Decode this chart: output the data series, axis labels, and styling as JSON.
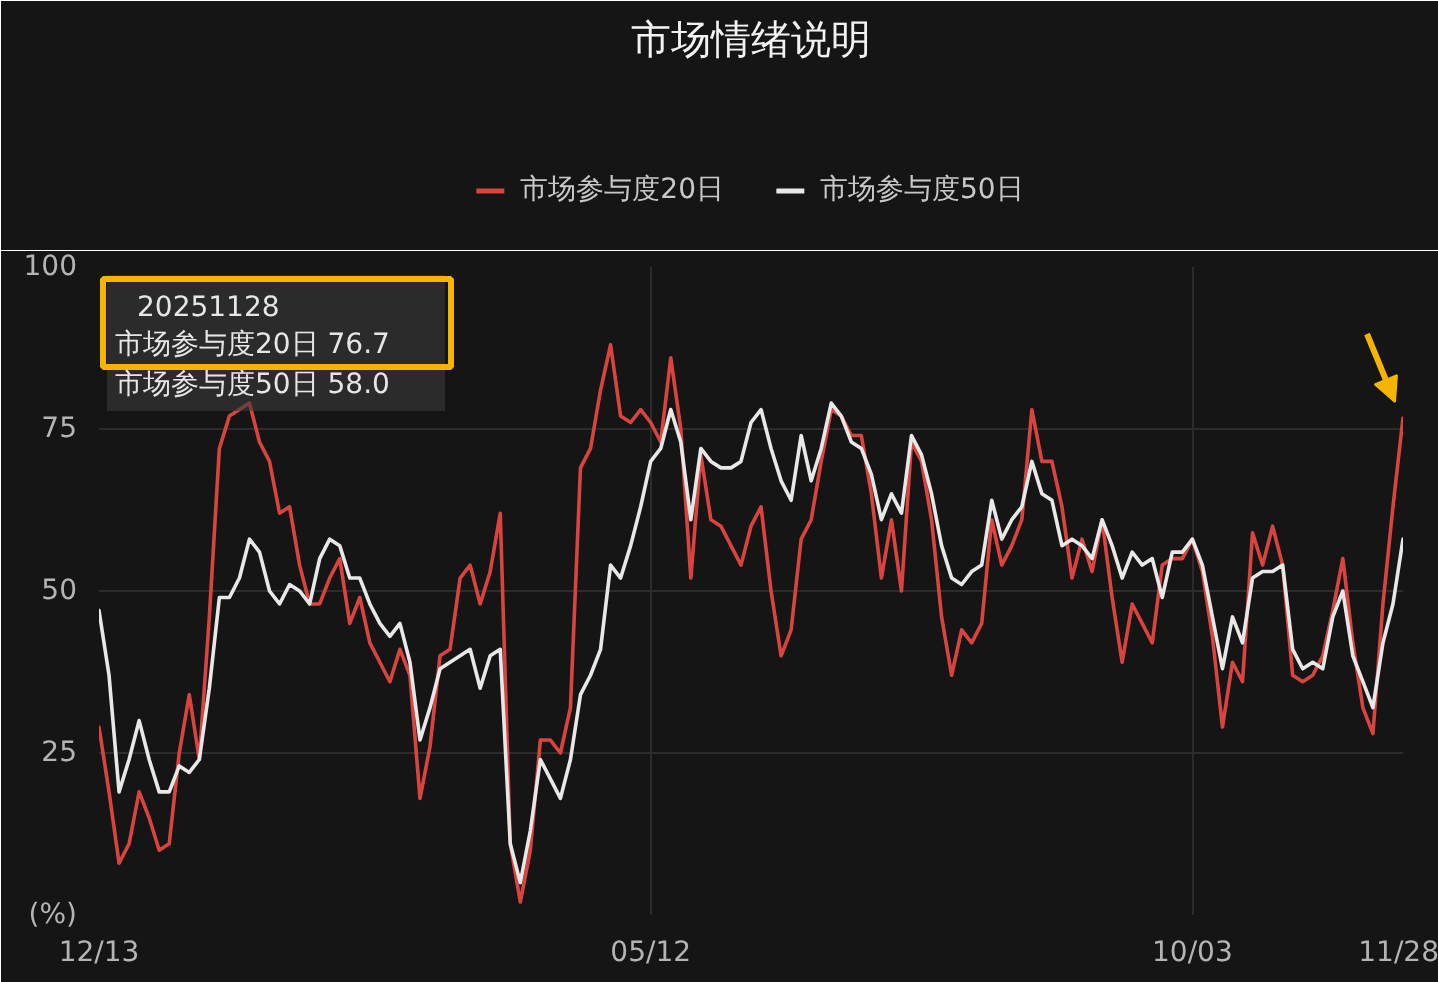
{
  "chart_data": {
    "type": "line",
    "title": "市场情绪说明",
    "annotations": [
      "20251128",
      "市场参与度20日 76.7",
      "市场参与度50日 58.0"
    ],
    "categories": [
      "12/13",
      null,
      null,
      null,
      null,
      null,
      null,
      null,
      null,
      null,
      null,
      null,
      null,
      null,
      null,
      null,
      null,
      null,
      null,
      null,
      null,
      null,
      null,
      null,
      null,
      null,
      null,
      null,
      null,
      null,
      null,
      null,
      null,
      null,
      null,
      null,
      null,
      null,
      null,
      null,
      null,
      null,
      null,
      null,
      null,
      null,
      null,
      null,
      null,
      null,
      null,
      null,
      null,
      null,
      null,
      "05/12",
      null,
      null,
      null,
      null,
      null,
      null,
      null,
      null,
      null,
      null,
      null,
      null,
      null,
      null,
      null,
      null,
      null,
      null,
      null,
      null,
      null,
      null,
      null,
      null,
      null,
      null,
      null,
      null,
      null,
      null,
      null,
      null,
      null,
      null,
      null,
      null,
      null,
      null,
      null,
      null,
      null,
      null,
      null,
      null,
      null,
      null,
      null,
      null,
      null,
      null,
      null,
      null,
      null,
      "10/03",
      null,
      null,
      null,
      null,
      null,
      null,
      null,
      null,
      null,
      null,
      null,
      null,
      null,
      null,
      null,
      null,
      null,
      null,
      null,
      null,
      "11/28"
    ],
    "series": [
      {
        "name": "市场参与度20日",
        "color": "#d9443f",
        "values": [
          29,
          19,
          8,
          11,
          19,
          15,
          10,
          11,
          25,
          34,
          24,
          46,
          72,
          77,
          78,
          79,
          73,
          70,
          62,
          63,
          54,
          48,
          48,
          52,
          55,
          45,
          49,
          42,
          39,
          36,
          41,
          37,
          18,
          26,
          40,
          41,
          52,
          54,
          48,
          53,
          62,
          11,
          2,
          10,
          27,
          27,
          25,
          32,
          69,
          72,
          81,
          88,
          77,
          76,
          78,
          76,
          73,
          86,
          75,
          52,
          71,
          61,
          60,
          57,
          54,
          60,
          63,
          50,
          40,
          44,
          58,
          61,
          70,
          78,
          77,
          74,
          74,
          65,
          52,
          61,
          50,
          73,
          70,
          61,
          46,
          37,
          44,
          42,
          45,
          61,
          54,
          57,
          61,
          78,
          70,
          70,
          63,
          52,
          58,
          53,
          61,
          49,
          39,
          48,
          45,
          42,
          54,
          55,
          55,
          58,
          53,
          43,
          29,
          39,
          36,
          59,
          54,
          60,
          54,
          37,
          36,
          37,
          40,
          47,
          55,
          42,
          32,
          28,
          48,
          63,
          76.7
        ]
      },
      {
        "name": "市场参与度50日",
        "color": "#e8e8e8",
        "values": [
          47,
          37,
          19,
          24,
          30,
          24,
          19,
          19,
          23,
          22,
          24,
          35,
          49,
          49,
          52,
          58,
          56,
          50,
          48,
          51,
          50,
          48,
          55,
          58,
          57,
          52,
          52,
          48,
          45,
          43,
          45,
          39,
          27,
          32,
          38,
          39,
          40,
          41,
          35,
          40,
          41,
          11,
          5,
          13,
          24,
          21,
          18,
          24,
          34,
          37,
          41,
          54,
          52,
          57,
          63,
          70,
          72,
          78,
          73,
          61,
          72,
          70,
          69,
          69,
          70,
          76,
          78,
          72,
          67,
          64,
          74,
          67,
          72,
          79,
          77,
          73,
          72,
          68,
          61,
          65,
          62,
          74,
          71,
          65,
          57,
          52,
          51,
          53,
          54,
          64,
          58,
          61,
          63,
          70,
          65,
          64,
          57,
          58,
          57,
          55,
          61,
          57,
          52,
          56,
          54,
          55,
          49,
          56,
          56,
          58,
          54,
          46,
          38,
          46,
          42,
          52,
          53,
          53,
          54,
          41,
          38,
          39,
          38,
          46,
          50,
          40,
          36,
          32,
          42,
          48,
          58.0
        ]
      }
    ],
    "ylim": [
      0,
      100
    ],
    "yticks": [
      {
        "value": 0,
        "label": "(%)"
      },
      25,
      50,
      75,
      100
    ],
    "grid": true,
    "legend": "top"
  }
}
